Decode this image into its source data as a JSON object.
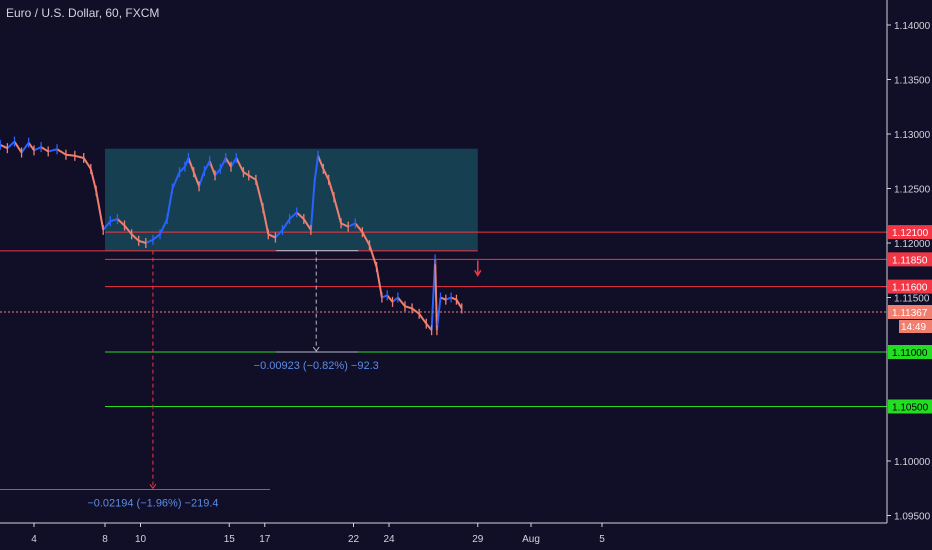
{
  "header": {
    "title": "Euro / U.S. Dollar, 60, FXCM"
  },
  "colors": {
    "background": "#110e27",
    "up": "#2962ff",
    "down": "#f07f6f",
    "red_line": "#f23645",
    "green_line": "#22dd22",
    "box_fill": "#17495a",
    "measure_text": "#5b8de6"
  },
  "chart_data": {
    "type": "line",
    "title": "Euro / U.S. Dollar, 60, FXCM",
    "ylim": [
      1.0935,
      1.1435
    ],
    "y_ticks": [
      "1.14000",
      "1.13500",
      "1.13000",
      "1.12500",
      "1.12000",
      "1.11500",
      "1.11000",
      "1.10500",
      "1.10000",
      "1.09500"
    ],
    "x_ticks": [
      {
        "label": "4",
        "day": 4
      },
      {
        "label": "8",
        "day": 8
      },
      {
        "label": "10",
        "day": 10
      },
      {
        "label": "15",
        "day": 15
      },
      {
        "label": "17",
        "day": 17
      },
      {
        "label": "22",
        "day": 22
      },
      {
        "label": "24",
        "day": 24
      },
      {
        "label": "29",
        "day": 29
      },
      {
        "label": "Aug",
        "day": 32
      },
      {
        "label": "5",
        "day": 36
      }
    ],
    "series": [
      {
        "values": [
          [
            2.1,
            1.129
          ],
          [
            2.5,
            1.1287
          ],
          [
            2.9,
            1.1293
          ],
          [
            3.3,
            1.1283
          ],
          [
            3.7,
            1.1292
          ],
          [
            4.0,
            1.1285
          ],
          [
            4.4,
            1.1288
          ],
          [
            4.8,
            1.1284
          ],
          [
            5.3,
            1.1286
          ],
          [
            5.8,
            1.1281
          ],
          [
            6.3,
            1.128
          ],
          [
            6.8,
            1.1278
          ],
          [
            7.2,
            1.1268
          ],
          [
            7.5,
            1.1248
          ],
          [
            7.9,
            1.1212
          ],
          [
            8.3,
            1.122
          ],
          [
            8.7,
            1.1222
          ],
          [
            9.1,
            1.1216
          ],
          [
            9.5,
            1.1208
          ],
          [
            9.9,
            1.1202
          ],
          [
            10.3,
            1.12
          ],
          [
            10.7,
            1.1203
          ],
          [
            11.1,
            1.1208
          ],
          [
            11.5,
            1.1222
          ],
          [
            11.8,
            1.125
          ],
          [
            12.2,
            1.1265
          ],
          [
            12.5,
            1.127
          ],
          [
            12.7,
            1.1278
          ],
          [
            13.0,
            1.1265
          ],
          [
            13.3,
            1.1252
          ],
          [
            13.6,
            1.1266
          ],
          [
            13.9,
            1.1275
          ],
          [
            14.2,
            1.1262
          ],
          [
            14.5,
            1.1268
          ],
          [
            14.8,
            1.1278
          ],
          [
            15.1,
            1.127
          ],
          [
            15.4,
            1.1278
          ],
          [
            15.8,
            1.1265
          ],
          [
            16.1,
            1.1262
          ],
          [
            16.5,
            1.1258
          ],
          [
            16.9,
            1.1232
          ],
          [
            17.2,
            1.1208
          ],
          [
            17.6,
            1.1205
          ],
          [
            18.0,
            1.1212
          ],
          [
            18.4,
            1.1222
          ],
          [
            18.8,
            1.1228
          ],
          [
            19.2,
            1.1222
          ],
          [
            19.6,
            1.1212
          ],
          [
            19.8,
            1.1255
          ],
          [
            20.0,
            1.128
          ],
          [
            20.3,
            1.1268
          ],
          [
            20.6,
            1.1258
          ],
          [
            20.9,
            1.1242
          ],
          [
            21.3,
            1.1218
          ],
          [
            21.7,
            1.1215
          ],
          [
            22.1,
            1.1218
          ],
          [
            22.5,
            1.121
          ],
          [
            22.9,
            1.1198
          ],
          [
            23.3,
            1.1178
          ],
          [
            23.6,
            1.115
          ],
          [
            23.9,
            1.1152
          ],
          [
            24.2,
            1.1146
          ],
          [
            24.5,
            1.115
          ],
          [
            24.9,
            1.1142
          ],
          [
            25.3,
            1.114
          ],
          [
            25.7,
            1.1135
          ],
          [
            26.1,
            1.1126
          ],
          [
            26.4,
            1.112
          ],
          [
            26.6,
            1.1185
          ],
          [
            26.7,
            1.112
          ],
          [
            26.9,
            1.115
          ],
          [
            27.2,
            1.1148
          ],
          [
            27.5,
            1.115
          ],
          [
            27.8,
            1.1148
          ],
          [
            28.1,
            1.114
          ]
        ]
      }
    ],
    "range_box": {
      "day_start": 8.0,
      "day_end": 29.0,
      "price_top": 1.12865,
      "price_bottom": 1.11928
    },
    "horizontal_levels": [
      {
        "price": 1.121,
        "label": "1.12100",
        "color": "#f23645",
        "day_start": 8.0,
        "right_axis": true
      },
      {
        "price": 1.1185,
        "label": "1.11850",
        "color": "#f23645",
        "day_start": 8.0,
        "right_axis": true
      },
      {
        "price": 1.116,
        "label": "1.11600",
        "color": "#f23645",
        "day_start": 8.0,
        "right_axis": true
      },
      {
        "price": 1.11,
        "label": "1.11000",
        "color": "#22dd22",
        "day_start": 8.0,
        "right_axis": true
      },
      {
        "price": 1.105,
        "label": "1.10500",
        "color": "#22dd22",
        "day_start": 8.0,
        "right_axis": true
      },
      {
        "price": 1.11928,
        "label": "",
        "color": "#f23645",
        "day_start": 2.0,
        "day_end": 29.0,
        "right_axis": false
      },
      {
        "price": 1.09738,
        "label": "",
        "color": "#f23645",
        "day_start": 2.0,
        "day_end": 17.3,
        "right_axis": false
      }
    ],
    "last_price": {
      "label": "1.11367",
      "price": 1.11367,
      "countdown": "14:49"
    },
    "measures": [
      {
        "day": 19.9,
        "from_price": 1.1193,
        "to_price": 1.11,
        "label": "−0.00923 (−0.82%) −92.3"
      },
      {
        "day": 10.7,
        "from_price": 1.1193,
        "to_price": 1.0974,
        "label": "−0.02194 (−1.96%) −219.4"
      }
    ],
    "arrow_marker": {
      "day": 29.0,
      "price": 1.1184
    }
  }
}
